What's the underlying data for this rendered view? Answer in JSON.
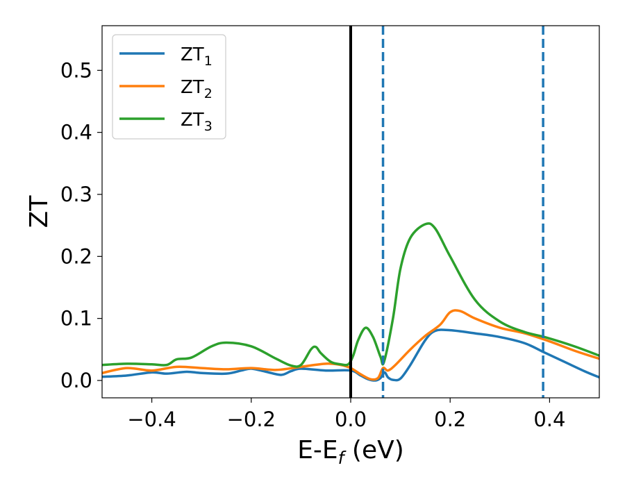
{
  "chart_data": {
    "type": "line",
    "xlabel": "E-E",
    "xlabel_sub": "f",
    "xlabel_unit": " (eV)",
    "ylabel": "ZT",
    "xlim": [
      -0.5,
      0.5
    ],
    "ylim": [
      -0.028,
      0.572
    ],
    "xticks": [
      -0.4,
      -0.2,
      0.0,
      0.2,
      0.4
    ],
    "xtick_labels": [
      "−0.4",
      "−0.2",
      "0.0",
      "0.2",
      "0.4"
    ],
    "yticks": [
      0.0,
      0.1,
      0.2,
      0.3,
      0.4,
      0.5
    ],
    "ytick_labels": [
      "0.0",
      "0.1",
      "0.2",
      "0.3",
      "0.4",
      "0.5"
    ],
    "grid": false,
    "legend_position": "top-left",
    "vlines": [
      {
        "x": 0.0,
        "style": "solid",
        "color": "#000000"
      },
      {
        "x": 0.065,
        "style": "dashed",
        "color": "#1f77b4"
      },
      {
        "x": 0.387,
        "style": "dashed",
        "color": "#1f77b4"
      }
    ],
    "series": [
      {
        "name": "ZT",
        "subscript": "1",
        "color": "#1f77b4",
        "points": [
          [
            -0.5,
            0.006
          ],
          [
            -0.45,
            0.008
          ],
          [
            -0.4,
            0.013
          ],
          [
            -0.37,
            0.011
          ],
          [
            -0.33,
            0.014
          ],
          [
            -0.3,
            0.012
          ],
          [
            -0.25,
            0.011
          ],
          [
            -0.22,
            0.016
          ],
          [
            -0.2,
            0.019
          ],
          [
            -0.17,
            0.014
          ],
          [
            -0.14,
            0.009
          ],
          [
            -0.12,
            0.015
          ],
          [
            -0.1,
            0.019
          ],
          [
            -0.05,
            0.016
          ],
          [
            0.0,
            0.016
          ],
          [
            0.02,
            0.008
          ],
          [
            0.035,
            0.002
          ],
          [
            0.05,
            0.0
          ],
          [
            0.06,
            0.004
          ],
          [
            0.068,
            0.013
          ],
          [
            0.075,
            0.005
          ],
          [
            0.085,
            0.001
          ],
          [
            0.1,
            0.003
          ],
          [
            0.12,
            0.025
          ],
          [
            0.15,
            0.065
          ],
          [
            0.17,
            0.08
          ],
          [
            0.2,
            0.081
          ],
          [
            0.25,
            0.076
          ],
          [
            0.3,
            0.07
          ],
          [
            0.35,
            0.06
          ],
          [
            0.39,
            0.045
          ],
          [
            0.43,
            0.03
          ],
          [
            0.47,
            0.015
          ],
          [
            0.5,
            0.005
          ]
        ]
      },
      {
        "name": "ZT",
        "subscript": "2",
        "color": "#ff7f0e",
        "points": [
          [
            -0.5,
            0.012
          ],
          [
            -0.45,
            0.02
          ],
          [
            -0.4,
            0.016
          ],
          [
            -0.35,
            0.022
          ],
          [
            -0.3,
            0.02
          ],
          [
            -0.25,
            0.018
          ],
          [
            -0.2,
            0.02
          ],
          [
            -0.15,
            0.017
          ],
          [
            -0.1,
            0.022
          ],
          [
            -0.05,
            0.027
          ],
          [
            -0.02,
            0.025
          ],
          [
            0.0,
            0.02
          ],
          [
            0.02,
            0.01
          ],
          [
            0.04,
            0.002
          ],
          [
            0.055,
            0.004
          ],
          [
            0.065,
            0.02
          ],
          [
            0.075,
            0.016
          ],
          [
            0.09,
            0.025
          ],
          [
            0.12,
            0.05
          ],
          [
            0.15,
            0.072
          ],
          [
            0.18,
            0.09
          ],
          [
            0.2,
            0.11
          ],
          [
            0.22,
            0.112
          ],
          [
            0.25,
            0.1
          ],
          [
            0.3,
            0.085
          ],
          [
            0.35,
            0.076
          ],
          [
            0.4,
            0.063
          ],
          [
            0.45,
            0.048
          ],
          [
            0.5,
            0.035
          ]
        ]
      },
      {
        "name": "ZT",
        "subscript": "3",
        "color": "#2ca02c",
        "points": [
          [
            -0.5,
            0.025
          ],
          [
            -0.45,
            0.027
          ],
          [
            -0.4,
            0.026
          ],
          [
            -0.37,
            0.025
          ],
          [
            -0.35,
            0.034
          ],
          [
            -0.32,
            0.037
          ],
          [
            -0.28,
            0.055
          ],
          [
            -0.25,
            0.061
          ],
          [
            -0.2,
            0.055
          ],
          [
            -0.15,
            0.035
          ],
          [
            -0.12,
            0.024
          ],
          [
            -0.1,
            0.025
          ],
          [
            -0.08,
            0.05
          ],
          [
            -0.07,
            0.054
          ],
          [
            -0.06,
            0.044
          ],
          [
            -0.04,
            0.03
          ],
          [
            -0.02,
            0.026
          ],
          [
            -0.005,
            0.026
          ],
          [
            0.005,
            0.04
          ],
          [
            0.015,
            0.065
          ],
          [
            0.03,
            0.085
          ],
          [
            0.045,
            0.07
          ],
          [
            0.06,
            0.038
          ],
          [
            0.067,
            0.03
          ],
          [
            0.085,
            0.1
          ],
          [
            0.1,
            0.18
          ],
          [
            0.12,
            0.23
          ],
          [
            0.15,
            0.252
          ],
          [
            0.17,
            0.245
          ],
          [
            0.2,
            0.2
          ],
          [
            0.25,
            0.13
          ],
          [
            0.3,
            0.095
          ],
          [
            0.35,
            0.078
          ],
          [
            0.39,
            0.07
          ],
          [
            0.45,
            0.055
          ],
          [
            0.5,
            0.04
          ]
        ]
      }
    ]
  }
}
